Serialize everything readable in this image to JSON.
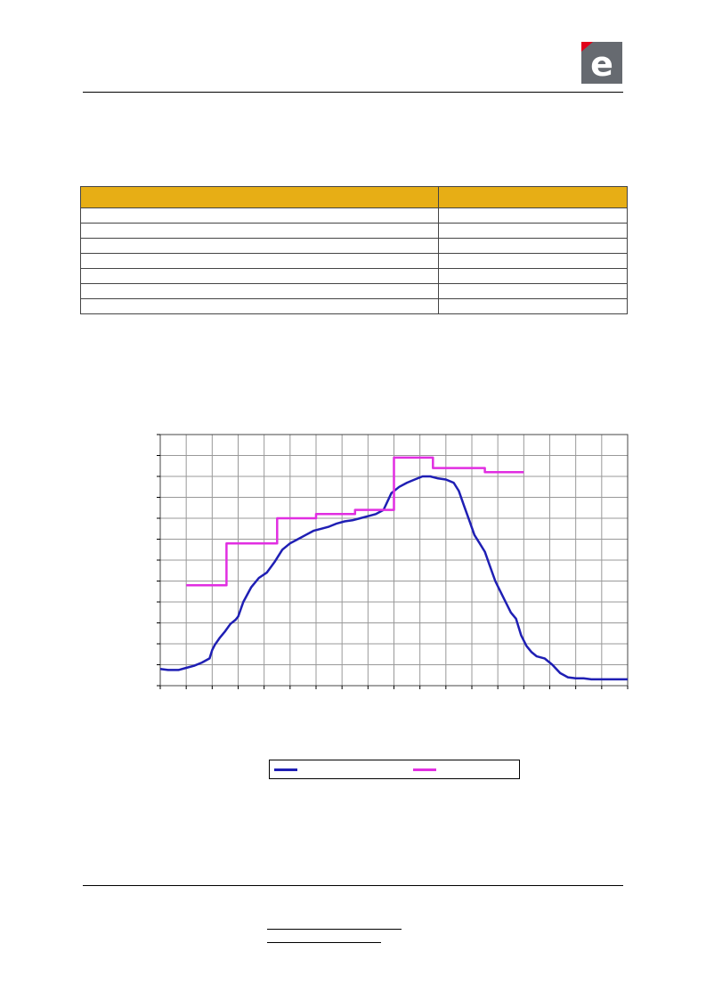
{
  "brand": {
    "logo_letter": "e",
    "logo_bg": "#666a70",
    "logo_accent": "#e2001a"
  },
  "table": {
    "header_color": "#e7ae15",
    "headers": [
      "",
      ""
    ],
    "rows": [
      [
        "",
        ""
      ],
      [
        "",
        ""
      ],
      [
        "",
        ""
      ],
      [
        "",
        ""
      ],
      [
        "",
        ""
      ],
      [
        "",
        ""
      ],
      [
        "",
        ""
      ]
    ]
  },
  "chart_data": {
    "type": "line",
    "title": "",
    "xlabel": "",
    "ylabel": "",
    "x_ticks": 18,
    "y_ticks": 12,
    "xlim": [
      0,
      18
    ],
    "ylim": [
      0,
      12
    ],
    "grid": true,
    "legend_placement": "bottom",
    "series": [
      {
        "color": "#1f1fb4",
        "step": false,
        "x": [
          0,
          0.3,
          0.7,
          1.0,
          1.3,
          1.6,
          1.9,
          2.0,
          2.1,
          2.3,
          2.5,
          2.7,
          2.9,
          3.0,
          3.2,
          3.5,
          3.8,
          4.1,
          4.4,
          4.7,
          5.0,
          5.3,
          5.6,
          5.9,
          6.2,
          6.5,
          6.8,
          7.1,
          7.4,
          7.7,
          8.0,
          8.3,
          8.6,
          8.9,
          9.2,
          9.5,
          9.8,
          10.1,
          10.4,
          10.7,
          11.0,
          11.3,
          11.5,
          11.7,
          11.9,
          12.1,
          12.3,
          12.5,
          12.7,
          12.9,
          13.1,
          13.3,
          13.5,
          13.7,
          13.9,
          14.1,
          14.3,
          14.5,
          14.8,
          15.1,
          15.4,
          15.7,
          16.0,
          16.3,
          16.6,
          17.0,
          17.4,
          18.0
        ],
        "y": [
          0.8,
          0.75,
          0.75,
          0.85,
          0.95,
          1.1,
          1.3,
          1.7,
          1.95,
          2.3,
          2.6,
          2.95,
          3.15,
          3.3,
          4.0,
          4.7,
          5.15,
          5.4,
          5.9,
          6.5,
          6.8,
          7.0,
          7.2,
          7.4,
          7.5,
          7.6,
          7.75,
          7.85,
          7.9,
          8.0,
          8.1,
          8.2,
          8.4,
          9.2,
          9.5,
          9.7,
          9.85,
          10.0,
          10.0,
          9.9,
          9.85,
          9.7,
          9.3,
          8.6,
          7.9,
          7.2,
          6.8,
          6.4,
          5.7,
          5.0,
          4.5,
          4.0,
          3.5,
          3.2,
          2.4,
          1.9,
          1.6,
          1.4,
          1.3,
          1.0,
          0.6,
          0.4,
          0.35,
          0.35,
          0.3,
          0.3,
          0.3,
          0.3
        ]
      },
      {
        "color": "#e12ee1",
        "step": true,
        "x": [
          1.0,
          2.55,
          2.55,
          4.5,
          4.5,
          6.0,
          6.0,
          7.5,
          7.5,
          9.0,
          9.0,
          10.5,
          10.5,
          12.5,
          12.5,
          14.0
        ],
        "y": [
          4.8,
          4.8,
          6.8,
          6.8,
          8.0,
          8.0,
          8.2,
          8.2,
          8.4,
          8.4,
          10.9,
          10.9,
          10.4,
          10.4,
          10.2,
          10.2
        ]
      }
    ]
  },
  "legend": {
    "items": [
      {
        "label": "",
        "color": "#1f1fb4"
      },
      {
        "label": "",
        "color": "#e12ee1"
      }
    ]
  }
}
